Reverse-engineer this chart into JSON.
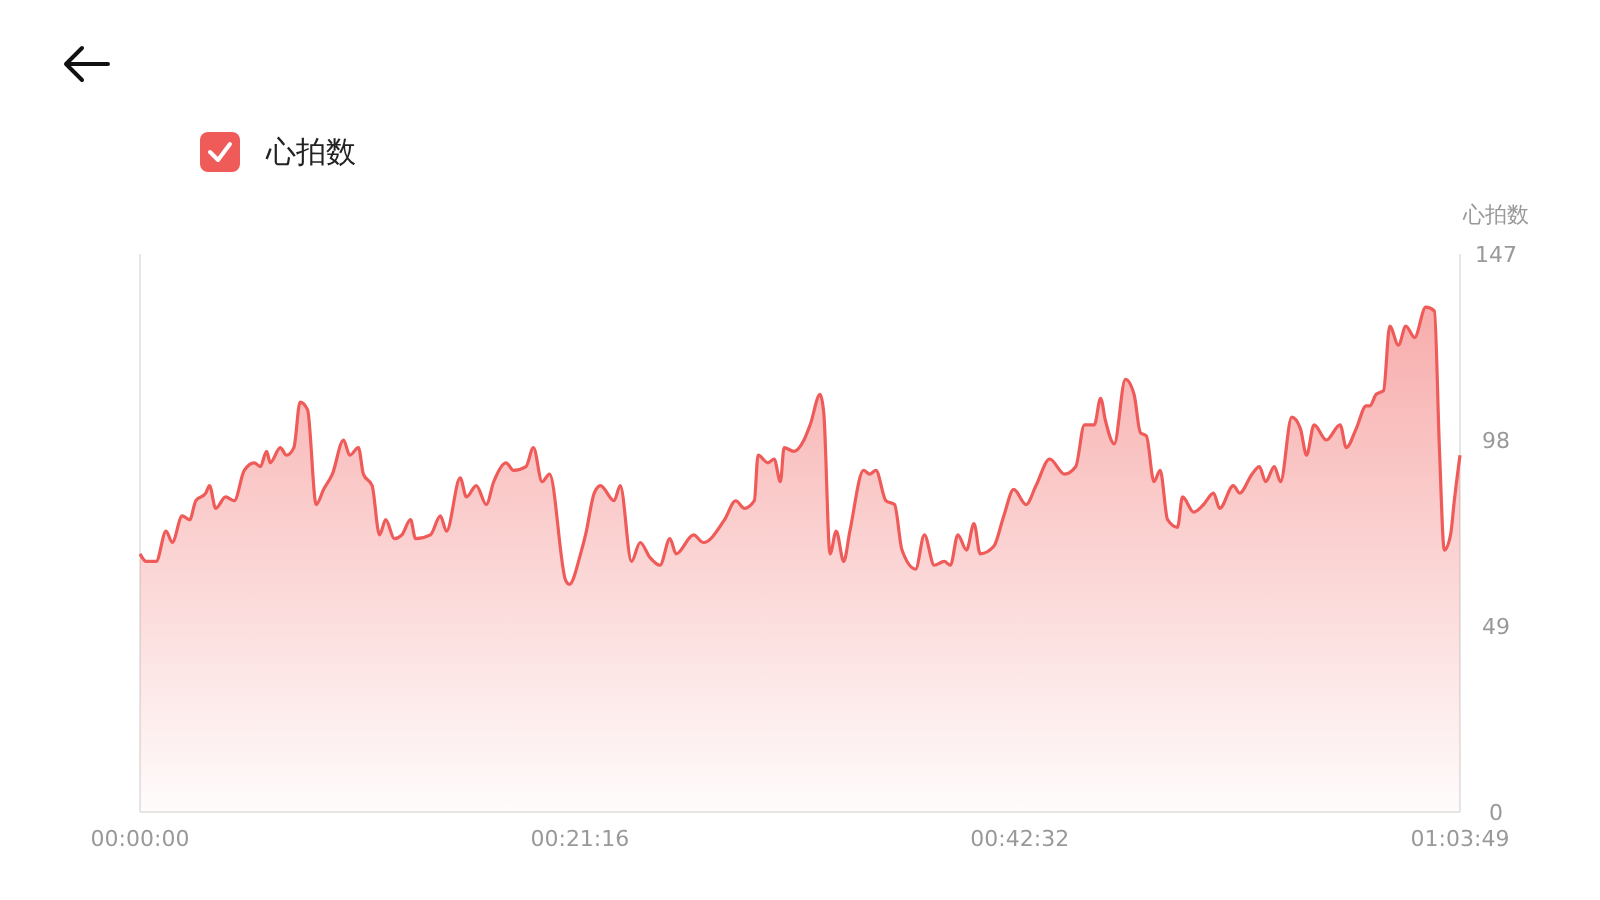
{
  "chart_data": {
    "type": "area",
    "ylabel": "心拍数",
    "legend": "top left",
    "grid": false,
    "marker": "none",
    "line_style": "solid",
    "xlim": [
      0,
      1.06361
    ],
    "xticks": [
      {
        "value": 0,
        "label": "00:00:00"
      },
      {
        "value": 0.35444,
        "label": "00:21:16"
      },
      {
        "value": 0.70889,
        "label": "00:42:32"
      },
      {
        "value": 1.06361,
        "label": "01:03:49"
      }
    ],
    "ylim": [
      0,
      147
    ],
    "yticks": [
      0,
      49,
      98,
      147
    ],
    "series": [
      {
        "name": "心拍数",
        "color": "#ef5b59",
        "x": [
          0,
          0.005,
          0.013,
          0.021,
          0.026,
          0.034,
          0.04,
          0.045,
          0.053,
          0.056,
          0.061,
          0.069,
          0.076,
          0.084,
          0.092,
          0.097,
          0.102,
          0.105,
          0.113,
          0.118,
          0.124,
          0.129,
          0.135,
          0.142,
          0.148,
          0.155,
          0.164,
          0.169,
          0.176,
          0.18,
          0.187,
          0.193,
          0.198,
          0.205,
          0.211,
          0.218,
          0.222,
          0.234,
          0.242,
          0.247,
          0.258,
          0.263,
          0.271,
          0.279,
          0.285,
          0.295,
          0.301,
          0.311,
          0.317,
          0.324,
          0.33,
          0.343,
          0.346,
          0.355,
          0.359,
          0.366,
          0.371,
          0.382,
          0.387,
          0.396,
          0.403,
          0.411,
          0.419,
          0.427,
          0.432,
          0.446,
          0.454,
          0.471,
          0.48,
          0.487,
          0.495,
          0.498,
          0.506,
          0.511,
          0.516,
          0.519,
          0.527,
          0.535,
          0.54,
          0.548,
          0.551,
          0.556,
          0.561,
          0.567,
          0.572,
          0.583,
          0.588,
          0.593,
          0.601,
          0.608,
          0.614,
          0.625,
          0.632,
          0.64,
          0.648,
          0.653,
          0.659,
          0.666,
          0.672,
          0.677,
          0.688,
          0.696,
          0.704,
          0.714,
          0.722,
          0.733,
          0.745,
          0.754,
          0.761,
          0.769,
          0.774,
          0.778,
          0.785,
          0.794,
          0.801,
          0.806,
          0.811,
          0.817,
          0.822,
          0.828,
          0.836,
          0.84,
          0.849,
          0.857,
          0.865,
          0.87,
          0.881,
          0.886,
          0.896,
          0.902,
          0.907,
          0.914,
          0.919,
          0.928,
          0.935,
          0.94,
          0.946,
          0.956,
          0.967,
          0.972,
          0.98,
          0.988,
          0.991,
          0.996,
          1.002,
          1.007,
          1.014,
          1.02,
          1.027,
          1.036,
          1.043,
          1.047,
          1.051,
          1.056,
          1.059,
          1.0636
        ],
        "values": [
          68,
          66,
          66,
          74,
          71,
          78,
          77,
          82,
          84,
          86,
          80,
          83,
          82,
          90,
          92,
          91,
          95,
          92,
          96,
          94,
          96,
          108,
          106,
          81,
          85,
          89,
          98,
          94,
          96,
          89,
          86,
          73,
          77,
          72,
          73,
          77,
          72,
          73,
          78,
          74,
          88,
          83,
          86,
          81,
          87,
          92,
          90,
          91,
          96,
          87,
          89,
          61,
          60,
          68,
          73,
          84,
          86,
          82,
          86,
          66,
          71,
          67,
          65,
          72,
          68,
          73,
          71,
          77,
          82,
          80,
          82,
          94,
          92,
          93,
          87,
          96,
          95,
          98,
          102,
          110,
          105,
          68,
          74,
          66,
          74,
          90,
          89,
          90,
          82,
          81,
          69,
          64,
          73,
          65,
          66,
          65,
          73,
          69,
          76,
          68,
          70,
          78,
          85,
          81,
          86,
          93,
          89,
          91,
          102,
          102,
          109,
          103,
          97,
          114,
          110,
          100,
          99,
          87,
          90,
          77,
          75,
          83,
          79,
          81,
          84,
          80,
          86,
          84,
          89,
          91,
          87,
          91,
          87,
          104,
          101,
          94,
          102,
          98,
          102,
          96,
          101,
          107,
          107,
          110,
          111,
          128,
          123,
          128,
          125,
          133,
          132,
          96,
          69,
          73,
          82,
          94
        ]
      }
    ]
  }
}
